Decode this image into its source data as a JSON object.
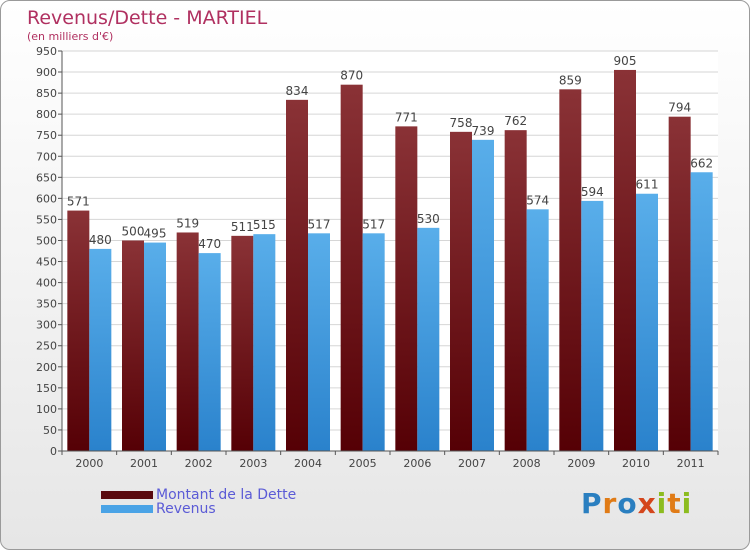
{
  "chart_data": {
    "type": "bar",
    "title": "Revenus/Dette - MARTIEL",
    "subtitle": "(en milliers d'€)",
    "categories": [
      "2000",
      "2001",
      "2002",
      "2003",
      "2004",
      "2005",
      "2006",
      "2007",
      "2008",
      "2009",
      "2010",
      "2011"
    ],
    "series": [
      {
        "name": "Montant de la Dette",
        "values": [
          571,
          500,
          519,
          511,
          834,
          870,
          771,
          758,
          762,
          859,
          905,
          794
        ],
        "color": "#6e1518"
      },
      {
        "name": "Revenus",
        "values": [
          480,
          495,
          470,
          515,
          517,
          517,
          530,
          739,
          574,
          594,
          611,
          662
        ],
        "color": "#4aa3e6"
      }
    ],
    "ylim": [
      0,
      950
    ],
    "yticks": [
      0,
      50,
      100,
      150,
      200,
      250,
      300,
      350,
      400,
      450,
      500,
      550,
      600,
      650,
      700,
      750,
      800,
      850,
      900,
      950
    ],
    "xlabel": "",
    "ylabel": "",
    "grid": true,
    "legend_position": "bottom-left"
  },
  "legend": {
    "items": [
      {
        "label": "Montant de la Dette",
        "color": "#5a0a0e"
      },
      {
        "label": "Revenus",
        "color": "#4aa3e6"
      }
    ]
  },
  "logo": {
    "letters": [
      "P",
      "r",
      "o",
      "x",
      "i",
      "t",
      "i"
    ],
    "colors": [
      "#2a7fc0",
      "#e07b16",
      "#2a7fc0",
      "#d4461c",
      "#8cbc1f",
      "#e07b16",
      "#8cbc1f"
    ]
  }
}
